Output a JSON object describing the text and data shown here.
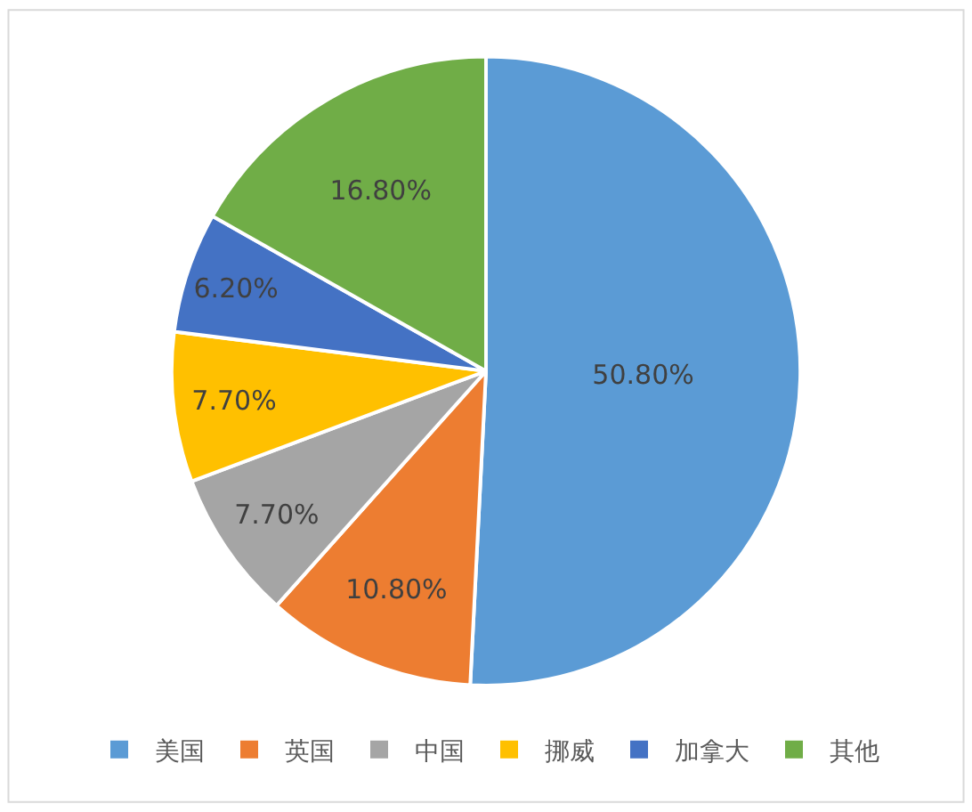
{
  "chart_data": {
    "type": "pie",
    "categories": [
      "美国",
      "英国",
      "中国",
      "挪威",
      "加拿大",
      "其他"
    ],
    "values": [
      50.8,
      10.8,
      7.7,
      7.7,
      6.2,
      16.8
    ],
    "colors": [
      "#5b9bd5",
      "#ed7d31",
      "#a5a5a5",
      "#ffc000",
      "#4472c4",
      "#70ad47"
    ],
    "value_labels": [
      "50.80%",
      "10.80%",
      "7.70%",
      "7.70%",
      "6.20%",
      "16.80%"
    ],
    "legend": "bottom"
  }
}
